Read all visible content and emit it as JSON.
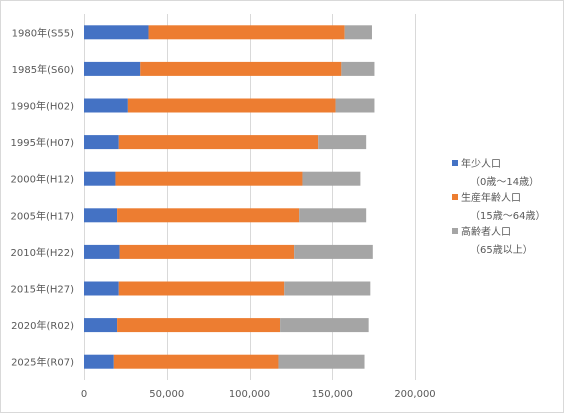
{
  "chart_data": {
    "type": "bar",
    "orientation": "horizontal",
    "stacked": true,
    "categories": [
      "1980年(S55)",
      "1985年(S60)",
      "1990年(H02)",
      "1995年(H07)",
      "2000年(H12)",
      "2005年(H17)",
      "2010年(H22)",
      "2015年(H27)",
      "2020年(R02)",
      "2025年(R07)"
    ],
    "series": [
      {
        "name": "年少人口",
        "name_sub": "（0歳〜14歳）",
        "color": "#4472c4",
        "values": [
          39000,
          34000,
          26500,
          21000,
          19000,
          20000,
          21500,
          21000,
          20000,
          18000
        ]
      },
      {
        "name": "生産年齢人口",
        "name_sub": "（15歳〜64歳）",
        "color": "#ed7d31",
        "values": [
          118500,
          121500,
          125500,
          120500,
          113000,
          110000,
          105500,
          100000,
          98500,
          99500
        ]
      },
      {
        "name": "高齢者人口",
        "name_sub": "（65歳以上）",
        "color": "#a5a5a5",
        "values": [
          16500,
          20000,
          23500,
          29000,
          35000,
          40500,
          47500,
          52000,
          53500,
          52000
        ]
      }
    ],
    "xlim": [
      0,
      200000
    ],
    "x_ticks": [
      0,
      50000,
      100000,
      150000,
      200000
    ],
    "x_tick_labels": [
      "0",
      "50,000",
      "100,000",
      "150,000",
      "200,000"
    ],
    "grid": "vertical",
    "legend_position": "right",
    "title": "",
    "xlabel": "",
    "ylabel": "",
    "grid_color": "#d9d9d9"
  }
}
